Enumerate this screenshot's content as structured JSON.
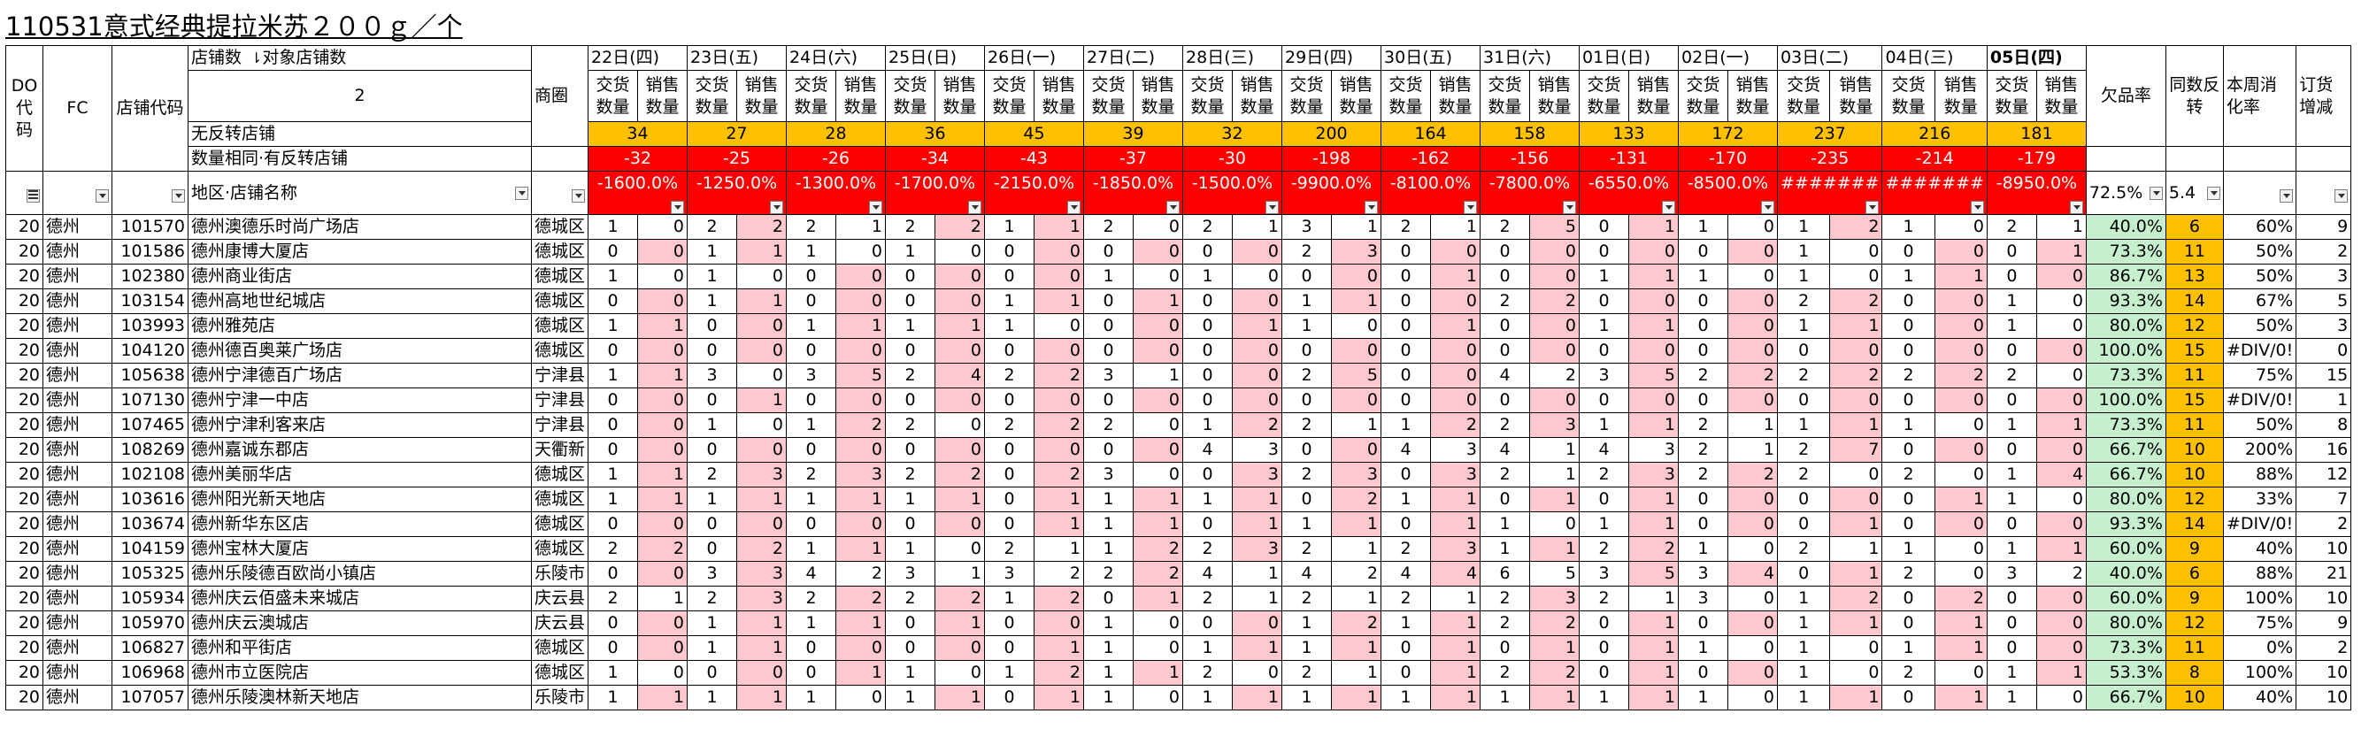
{
  "title": "110531意式经典提拉米苏２００ｇ／个",
  "header": {
    "do_code": "DO代码",
    "fc": "FC",
    "store_code": "店铺代码",
    "store_count_label": "店铺数",
    "target_store_count_label": "对象店铺数",
    "target_store_count": "2",
    "no_reversal_label": "无反转店铺",
    "same_qty_reversal_label": "数量相同·有反转店铺",
    "region_store_label": "地区·店铺名称",
    "district": "商圈",
    "delivery_label": "交货数量",
    "sales_label": "销售数量",
    "missing_rate": "欠品率",
    "same_reversal": "同数反转",
    "weekly_rate": "本周消化率",
    "order_change": "订货增减",
    "missing_rate_filter": "72.5%",
    "same_reversal_filter": "5.4"
  },
  "dates": [
    "22日(四)",
    "23日(五)",
    "24日(六)",
    "25日(日)",
    "26日(一)",
    "27日(二)",
    "28日(三)",
    "29日(四)",
    "30日(五)",
    "31日(六)",
    "01日(日)",
    "02日(一)",
    "03日(二)",
    "04日(三)",
    "05日(四)"
  ],
  "no_reversal": [
    "34",
    "27",
    "28",
    "36",
    "45",
    "39",
    "32",
    "200",
    "164",
    "158",
    "133",
    "172",
    "237",
    "216",
    "181"
  ],
  "same_qty": [
    "-32",
    "-25",
    "-26",
    "-34",
    "-43",
    "-37",
    "-30",
    "-198",
    "-162",
    "-156",
    "-131",
    "-170",
    "-235",
    "-214",
    "-179"
  ],
  "totals": [
    "-1600.0%",
    "-1250.0%",
    "-1300.0%",
    "-1700.0%",
    "-2150.0%",
    "-1850.0%",
    "-1500.0%",
    "-9900.0%",
    "-8100.0%",
    "-7800.0%",
    "-6550.0%",
    "-8500.0%",
    "#######",
    "#######",
    "-8950.0%"
  ],
  "rows": [
    {
      "do": "20",
      "fc": "德州",
      "code": "101570",
      "name": "德州澳德乐时尚广场店",
      "district": "德城区",
      "v": [
        [
          1,
          0
        ],
        [
          2,
          2
        ],
        [
          2,
          1
        ],
        [
          2,
          2
        ],
        [
          1,
          1
        ],
        [
          2,
          0
        ],
        [
          2,
          1
        ],
        [
          3,
          1
        ],
        [
          2,
          1
        ],
        [
          2,
          5
        ],
        [
          0,
          1
        ],
        [
          1,
          0
        ],
        [
          1,
          2
        ],
        [
          1,
          0
        ],
        [
          2,
          1
        ]
      ],
      "missing": "40.0%",
      "rev": "6",
      "rate": "60%",
      "order": "9"
    },
    {
      "do": "20",
      "fc": "德州",
      "code": "101586",
      "name": "德州康博大厦店",
      "district": "德城区",
      "v": [
        [
          0,
          0
        ],
        [
          1,
          1
        ],
        [
          1,
          0
        ],
        [
          1,
          0
        ],
        [
          0,
          0
        ],
        [
          0,
          0
        ],
        [
          0,
          0
        ],
        [
          2,
          3
        ],
        [
          0,
          0
        ],
        [
          0,
          0
        ],
        [
          0,
          0
        ],
        [
          0,
          0
        ],
        [
          1,
          0
        ],
        [
          0,
          0
        ],
        [
          0,
          1
        ]
      ],
      "missing": "73.3%",
      "rev": "11",
      "rate": "50%",
      "order": "2"
    },
    {
      "do": "20",
      "fc": "德州",
      "code": "102380",
      "name": "德州商业街店",
      "district": "德城区",
      "v": [
        [
          1,
          0
        ],
        [
          1,
          0
        ],
        [
          0,
          0
        ],
        [
          0,
          0
        ],
        [
          0,
          0
        ],
        [
          1,
          0
        ],
        [
          1,
          0
        ],
        [
          0,
          0
        ],
        [
          0,
          1
        ],
        [
          0,
          0
        ],
        [
          1,
          1
        ],
        [
          1,
          0
        ],
        [
          1,
          0
        ],
        [
          1,
          1
        ],
        [
          0,
          0
        ]
      ],
      "missing": "86.7%",
      "rev": "13",
      "rate": "50%",
      "order": "3"
    },
    {
      "do": "20",
      "fc": "德州",
      "code": "103154",
      "name": "德州高地世纪城店",
      "district": "德城区",
      "v": [
        [
          0,
          0
        ],
        [
          1,
          1
        ],
        [
          0,
          0
        ],
        [
          0,
          0
        ],
        [
          1,
          1
        ],
        [
          0,
          1
        ],
        [
          0,
          0
        ],
        [
          1,
          1
        ],
        [
          0,
          0
        ],
        [
          2,
          2
        ],
        [
          0,
          0
        ],
        [
          0,
          0
        ],
        [
          2,
          2
        ],
        [
          0,
          0
        ],
        [
          1,
          0
        ]
      ],
      "missing": "93.3%",
      "rev": "14",
      "rate": "67%",
      "order": "5"
    },
    {
      "do": "20",
      "fc": "德州",
      "code": "103993",
      "name": "德州雅苑店",
      "district": "德城区",
      "v": [
        [
          1,
          1
        ],
        [
          0,
          0
        ],
        [
          1,
          1
        ],
        [
          1,
          1
        ],
        [
          1,
          0
        ],
        [
          0,
          0
        ],
        [
          0,
          1
        ],
        [
          1,
          0
        ],
        [
          0,
          1
        ],
        [
          0,
          0
        ],
        [
          1,
          1
        ],
        [
          0,
          0
        ],
        [
          1,
          1
        ],
        [
          0,
          0
        ],
        [
          1,
          0
        ]
      ],
      "missing": "80.0%",
      "rev": "12",
      "rate": "50%",
      "order": "3"
    },
    {
      "do": "20",
      "fc": "德州",
      "code": "104120",
      "name": "德州德百奥莱广场店",
      "district": "德城区",
      "v": [
        [
          0,
          0
        ],
        [
          0,
          0
        ],
        [
          0,
          0
        ],
        [
          0,
          0
        ],
        [
          0,
          0
        ],
        [
          0,
          0
        ],
        [
          0,
          0
        ],
        [
          0,
          0
        ],
        [
          0,
          0
        ],
        [
          0,
          0
        ],
        [
          0,
          0
        ],
        [
          0,
          0
        ],
        [
          0,
          0
        ],
        [
          0,
          0
        ],
        [
          0,
          0
        ]
      ],
      "missing": "100.0%",
      "rev": "15",
      "rate": "#DIV/0!",
      "order": "0"
    },
    {
      "do": "20",
      "fc": "德州",
      "code": "105638",
      "name": "德州宁津德百广场店",
      "district": "宁津县",
      "v": [
        [
          1,
          1
        ],
        [
          3,
          0
        ],
        [
          3,
          5
        ],
        [
          2,
          4
        ],
        [
          2,
          2
        ],
        [
          3,
          1
        ],
        [
          0,
          0
        ],
        [
          2,
          5
        ],
        [
          0,
          0
        ],
        [
          4,
          2
        ],
        [
          3,
          5
        ],
        [
          2,
          2
        ],
        [
          2,
          2
        ],
        [
          2,
          2
        ],
        [
          2,
          0
        ]
      ],
      "missing": "73.3%",
      "rev": "11",
      "rate": "75%",
      "order": "15"
    },
    {
      "do": "20",
      "fc": "德州",
      "code": "107130",
      "name": "德州宁津一中店",
      "district": "宁津县",
      "v": [
        [
          0,
          0
        ],
        [
          0,
          1
        ],
        [
          0,
          0
        ],
        [
          0,
          0
        ],
        [
          0,
          0
        ],
        [
          0,
          0
        ],
        [
          0,
          0
        ],
        [
          0,
          0
        ],
        [
          0,
          0
        ],
        [
          0,
          0
        ],
        [
          0,
          0
        ],
        [
          0,
          0
        ],
        [
          0,
          0
        ],
        [
          0,
          0
        ],
        [
          0,
          0
        ]
      ],
      "missing": "100.0%",
      "rev": "15",
      "rate": "#DIV/0!",
      "order": "1"
    },
    {
      "do": "20",
      "fc": "德州",
      "code": "107465",
      "name": "德州宁津利客来店",
      "district": "宁津县",
      "v": [
        [
          0,
          0
        ],
        [
          1,
          0
        ],
        [
          1,
          2
        ],
        [
          2,
          0
        ],
        [
          2,
          2
        ],
        [
          2,
          0
        ],
        [
          1,
          2
        ],
        [
          2,
          1
        ],
        [
          1,
          2
        ],
        [
          2,
          3
        ],
        [
          1,
          1
        ],
        [
          2,
          1
        ],
        [
          1,
          1
        ],
        [
          1,
          0
        ],
        [
          1,
          1
        ]
      ],
      "missing": "73.3%",
      "rev": "11",
      "rate": "50%",
      "order": "8"
    },
    {
      "do": "20",
      "fc": "德州",
      "code": "108269",
      "name": "德州嘉诚东郡店",
      "district": "天衢新",
      "v": [
        [
          0,
          0
        ],
        [
          0,
          0
        ],
        [
          0,
          0
        ],
        [
          0,
          0
        ],
        [
          0,
          0
        ],
        [
          0,
          0
        ],
        [
          4,
          3
        ],
        [
          0,
          0
        ],
        [
          4,
          3
        ],
        [
          4,
          1
        ],
        [
          4,
          3
        ],
        [
          2,
          1
        ],
        [
          2,
          7
        ],
        [
          0,
          0
        ],
        [
          0,
          0
        ]
      ],
      "missing": "66.7%",
      "rev": "10",
      "rate": "200%",
      "order": "16"
    },
    {
      "do": "20",
      "fc": "德州",
      "code": "102108",
      "name": "德州美丽华店",
      "district": "德城区",
      "v": [
        [
          1,
          1
        ],
        [
          2,
          3
        ],
        [
          2,
          3
        ],
        [
          2,
          2
        ],
        [
          0,
          2
        ],
        [
          3,
          0
        ],
        [
          0,
          3
        ],
        [
          2,
          3
        ],
        [
          0,
          3
        ],
        [
          2,
          1
        ],
        [
          2,
          3
        ],
        [
          2,
          2
        ],
        [
          2,
          0
        ],
        [
          2,
          0
        ],
        [
          1,
          4
        ]
      ],
      "missing": "66.7%",
      "rev": "10",
      "rate": "88%",
      "order": "12"
    },
    {
      "do": "20",
      "fc": "德州",
      "code": "103616",
      "name": "德州阳光新天地店",
      "district": "德城区",
      "v": [
        [
          1,
          1
        ],
        [
          1,
          1
        ],
        [
          1,
          1
        ],
        [
          1,
          1
        ],
        [
          0,
          1
        ],
        [
          1,
          1
        ],
        [
          1,
          1
        ],
        [
          0,
          2
        ],
        [
          1,
          1
        ],
        [
          0,
          1
        ],
        [
          0,
          1
        ],
        [
          0,
          0
        ],
        [
          0,
          0
        ],
        [
          0,
          1
        ],
        [
          1,
          0
        ]
      ],
      "missing": "80.0%",
      "rev": "12",
      "rate": "33%",
      "order": "7"
    },
    {
      "do": "20",
      "fc": "德州",
      "code": "103674",
      "name": "德州新华东区店",
      "district": "德城区",
      "v": [
        [
          0,
          0
        ],
        [
          0,
          0
        ],
        [
          0,
          0
        ],
        [
          0,
          0
        ],
        [
          0,
          1
        ],
        [
          1,
          1
        ],
        [
          0,
          1
        ],
        [
          1,
          1
        ],
        [
          0,
          1
        ],
        [
          1,
          0
        ],
        [
          1,
          1
        ],
        [
          0,
          0
        ],
        [
          0,
          1
        ],
        [
          0,
          0
        ],
        [
          0,
          0
        ]
      ],
      "missing": "93.3%",
      "rev": "14",
      "rate": "#DIV/0!",
      "order": "2"
    },
    {
      "do": "20",
      "fc": "德州",
      "code": "104159",
      "name": "德州宝林大厦店",
      "district": "德城区",
      "v": [
        [
          2,
          2
        ],
        [
          0,
          2
        ],
        [
          1,
          1
        ],
        [
          1,
          0
        ],
        [
          2,
          1
        ],
        [
          1,
          2
        ],
        [
          2,
          3
        ],
        [
          2,
          1
        ],
        [
          2,
          3
        ],
        [
          1,
          1
        ],
        [
          2,
          2
        ],
        [
          1,
          0
        ],
        [
          2,
          1
        ],
        [
          1,
          0
        ],
        [
          1,
          1
        ]
      ],
      "missing": "60.0%",
      "rev": "9",
      "rate": "40%",
      "order": "10"
    },
    {
      "do": "20",
      "fc": "德州",
      "code": "105325",
      "name": "德州乐陵德百欧尚小镇店",
      "district": "乐陵市",
      "v": [
        [
          0,
          0
        ],
        [
          3,
          3
        ],
        [
          4,
          2
        ],
        [
          3,
          1
        ],
        [
          3,
          2
        ],
        [
          2,
          2
        ],
        [
          4,
          1
        ],
        [
          4,
          2
        ],
        [
          4,
          4
        ],
        [
          6,
          5
        ],
        [
          3,
          5
        ],
        [
          3,
          4
        ],
        [
          0,
          1
        ],
        [
          2,
          0
        ],
        [
          3,
          2
        ]
      ],
      "missing": "40.0%",
      "rev": "6",
      "rate": "88%",
      "order": "21"
    },
    {
      "do": "20",
      "fc": "德州",
      "code": "105934",
      "name": "德州庆云佰盛未来城店",
      "district": "庆云县",
      "v": [
        [
          2,
          1
        ],
        [
          2,
          3
        ],
        [
          2,
          2
        ],
        [
          2,
          2
        ],
        [
          1,
          2
        ],
        [
          0,
          1
        ],
        [
          2,
          1
        ],
        [
          2,
          1
        ],
        [
          2,
          1
        ],
        [
          2,
          3
        ],
        [
          2,
          1
        ],
        [
          3,
          0
        ],
        [
          1,
          2
        ],
        [
          0,
          2
        ],
        [
          0,
          0
        ]
      ],
      "missing": "60.0%",
      "rev": "9",
      "rate": "100%",
      "order": "10"
    },
    {
      "do": "20",
      "fc": "德州",
      "code": "105970",
      "name": "德州庆云澳城店",
      "district": "庆云县",
      "v": [
        [
          0,
          0
        ],
        [
          1,
          1
        ],
        [
          1,
          1
        ],
        [
          0,
          1
        ],
        [
          0,
          0
        ],
        [
          1,
          0
        ],
        [
          0,
          0
        ],
        [
          1,
          2
        ],
        [
          1,
          1
        ],
        [
          2,
          2
        ],
        [
          0,
          1
        ],
        [
          0,
          0
        ],
        [
          1,
          1
        ],
        [
          0,
          1
        ],
        [
          0,
          0
        ]
      ],
      "missing": "80.0%",
      "rev": "12",
      "rate": "75%",
      "order": "9"
    },
    {
      "do": "20",
      "fc": "德州",
      "code": "106827",
      "name": "德州和平街店",
      "district": "德城区",
      "v": [
        [
          0,
          0
        ],
        [
          1,
          1
        ],
        [
          0,
          0
        ],
        [
          0,
          0
        ],
        [
          0,
          1
        ],
        [
          1,
          0
        ],
        [
          1,
          1
        ],
        [
          1,
          1
        ],
        [
          0,
          1
        ],
        [
          0,
          1
        ],
        [
          0,
          1
        ],
        [
          1,
          0
        ],
        [
          1,
          0
        ],
        [
          1,
          1
        ],
        [
          0,
          0
        ]
      ],
      "missing": "73.3%",
      "rev": "11",
      "rate": "0%",
      "order": "2"
    },
    {
      "do": "20",
      "fc": "德州",
      "code": "106968",
      "name": "德州市立医院店",
      "district": "德城区",
      "v": [
        [
          1,
          0
        ],
        [
          0,
          0
        ],
        [
          0,
          1
        ],
        [
          1,
          0
        ],
        [
          1,
          2
        ],
        [
          1,
          1
        ],
        [
          2,
          0
        ],
        [
          2,
          1
        ],
        [
          0,
          1
        ],
        [
          2,
          2
        ],
        [
          0,
          1
        ],
        [
          0,
          0
        ],
        [
          1,
          0
        ],
        [
          2,
          0
        ],
        [
          1,
          1
        ]
      ],
      "missing": "53.3%",
      "rev": "8",
      "rate": "100%",
      "order": "10"
    },
    {
      "do": "20",
      "fc": "德州",
      "code": "107057",
      "name": "德州乐陵澳林新天地店",
      "district": "乐陵市",
      "v": [
        [
          1,
          1
        ],
        [
          1,
          1
        ],
        [
          1,
          0
        ],
        [
          1,
          1
        ],
        [
          0,
          1
        ],
        [
          1,
          0
        ],
        [
          1,
          1
        ],
        [
          1,
          1
        ],
        [
          1,
          1
        ],
        [
          1,
          1
        ],
        [
          1,
          1
        ],
        [
          1,
          0
        ],
        [
          1,
          1
        ],
        [
          0,
          1
        ],
        [
          1,
          0
        ]
      ],
      "missing": "66.7%",
      "rev": "10",
      "rate": "40%",
      "order": "10"
    }
  ]
}
